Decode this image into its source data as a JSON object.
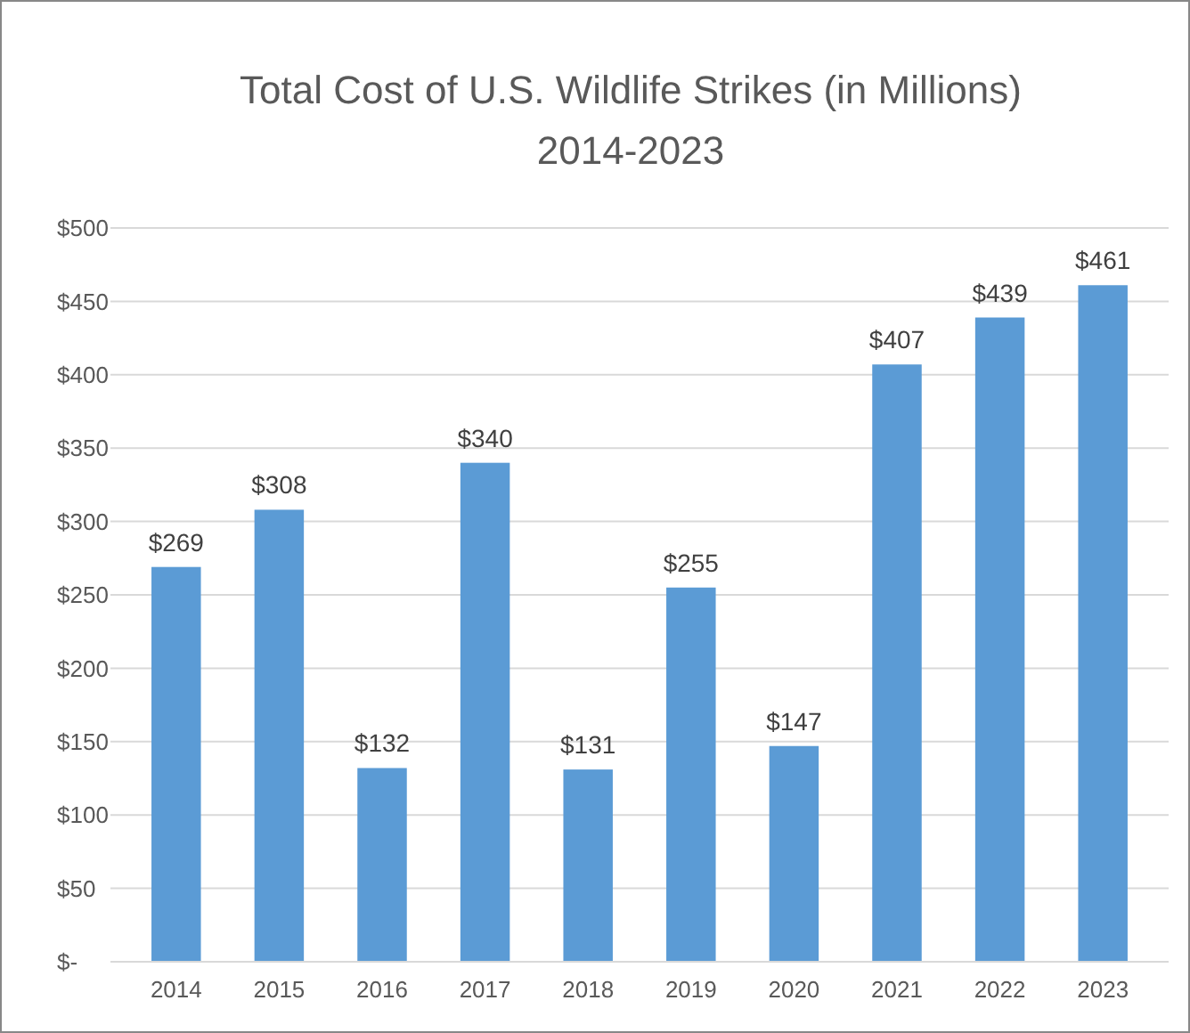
{
  "chart_data": {
    "type": "bar",
    "title": "Total Cost of U.S. Wildlife Strikes (in Millions)",
    "subtitle": "2014-2023",
    "categories": [
      "2014",
      "2015",
      "2016",
      "2017",
      "2018",
      "2019",
      "2020",
      "2021",
      "2022",
      "2023"
    ],
    "values": [
      269,
      308,
      132,
      340,
      131,
      255,
      147,
      407,
      439,
      461
    ],
    "value_labels": [
      "$269",
      "$308",
      "$132",
      "$340",
      "$131",
      "$255",
      "$147",
      "$407",
      "$439",
      "$461"
    ],
    "color": "#5b9bd5",
    "ylim": [
      0,
      500
    ],
    "yticks": [
      {
        "value": 0,
        "label": "$-"
      },
      {
        "value": 50,
        "label": "$50"
      },
      {
        "value": 100,
        "label": "$100"
      },
      {
        "value": 150,
        "label": "$150"
      },
      {
        "value": 200,
        "label": "$200"
      },
      {
        "value": 250,
        "label": "$250"
      },
      {
        "value": 300,
        "label": "$300"
      },
      {
        "value": 350,
        "label": "$350"
      },
      {
        "value": 400,
        "label": "$400"
      },
      {
        "value": 450,
        "label": "$450"
      },
      {
        "value": 500,
        "label": "$500"
      }
    ],
    "grid": "y"
  }
}
